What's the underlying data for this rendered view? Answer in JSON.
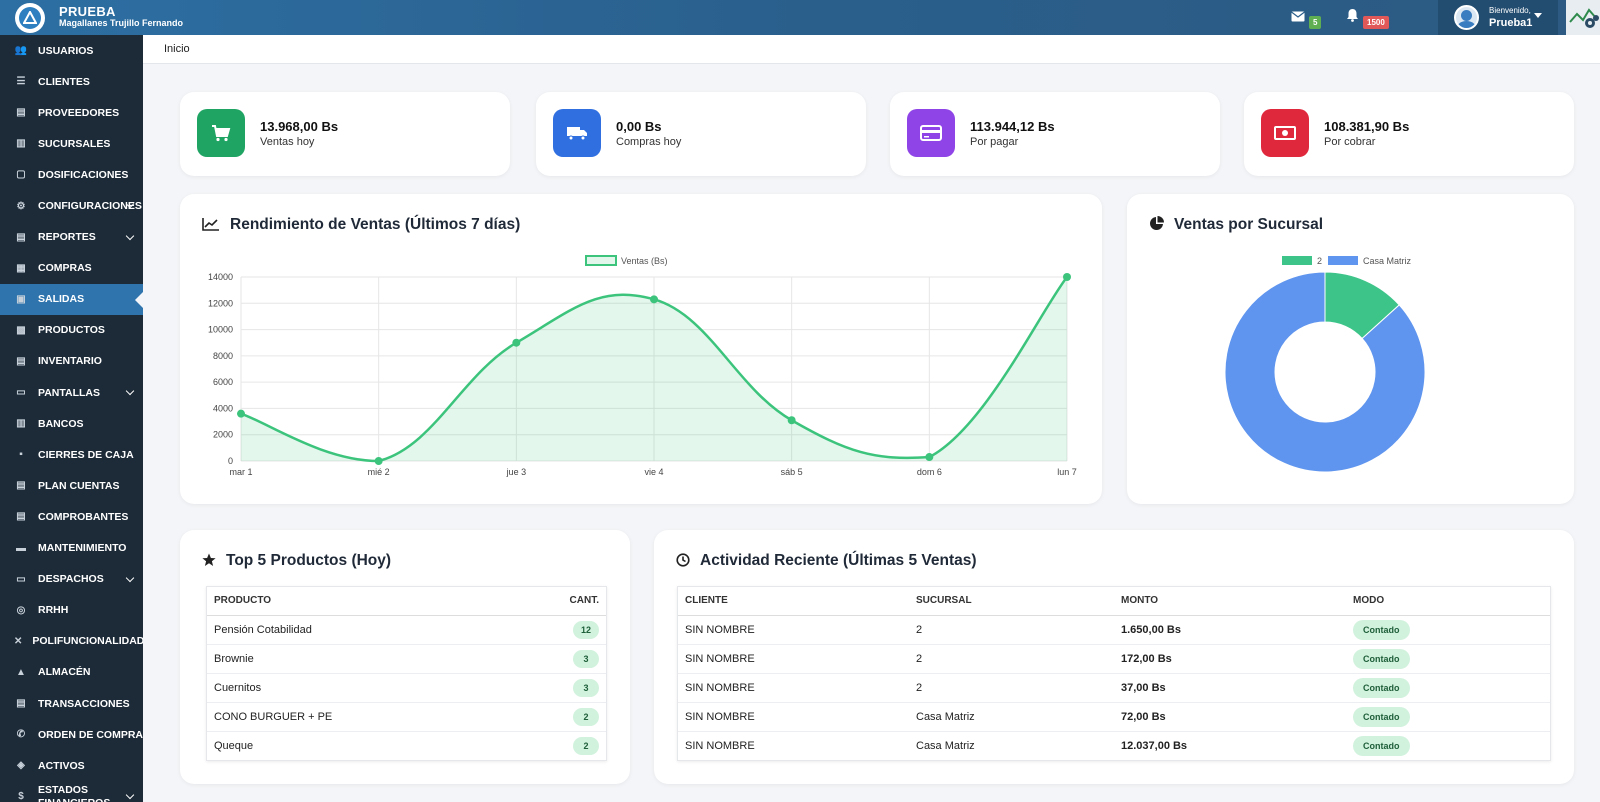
{
  "header": {
    "brand_title": "PRUEBA",
    "brand_subtitle": "Magallanes Trujillo Fernando",
    "mail_count": "5",
    "notif_count": "1500",
    "welcome": "Bienvenido,",
    "username": "Prueba1",
    "colors": {
      "mail_badge": "#4caf50",
      "notif_badge": "#e05858"
    }
  },
  "sidebar": {
    "items": [
      {
        "label": "USUARIOS",
        "icon": "users-icon"
      },
      {
        "label": "CLIENTES",
        "icon": "clients-icon"
      },
      {
        "label": "PROVEEDORES",
        "icon": "truck-icon"
      },
      {
        "label": "SUCURSALES",
        "icon": "building-icon"
      },
      {
        "label": "DOSIFICACIONES",
        "icon": "document-icon"
      },
      {
        "label": "CONFIGURACIONES",
        "icon": "gears-icon",
        "expandable": true
      },
      {
        "label": "REPORTES",
        "icon": "report-icon",
        "expandable": true
      },
      {
        "label": "COMPRAS",
        "icon": "cart-icon"
      },
      {
        "label": "SALIDAS",
        "icon": "exit-icon",
        "active": true
      },
      {
        "label": "PRODUCTOS",
        "icon": "box-icon"
      },
      {
        "label": "INVENTARIO",
        "icon": "inventory-icon"
      },
      {
        "label": "PANTALLAS",
        "icon": "monitor-icon",
        "expandable": true
      },
      {
        "label": "BANCOS",
        "icon": "bank-icon"
      },
      {
        "label": "CIERRES DE CAJA",
        "icon": "lock-icon"
      },
      {
        "label": "PLAN CUENTAS",
        "icon": "list-icon"
      },
      {
        "label": "COMPROBANTES",
        "icon": "receipt-icon"
      },
      {
        "label": "MANTENIMIENTO",
        "icon": "wrench-icon"
      },
      {
        "label": "DESPACHOS",
        "icon": "dispatch-icon",
        "expandable": true
      },
      {
        "label": "RRHH",
        "icon": "people-search-icon"
      },
      {
        "label": "POLIFUNCIONALIDAD",
        "icon": "tools-icon"
      },
      {
        "label": "ALMACÉN",
        "icon": "warehouse-icon"
      },
      {
        "label": "TRANSACCIONES",
        "icon": "transactions-icon"
      },
      {
        "label": "ORDEN DE COMPRA",
        "icon": "phone-icon"
      },
      {
        "label": "ACTIVOS",
        "icon": "assets-icon"
      },
      {
        "label": "ESTADOS FINANCIEROS",
        "icon": "dollar-icon",
        "expandable": true
      }
    ]
  },
  "breadcrumb": "Inicio",
  "stats": [
    {
      "value": "13.968,00 Bs",
      "label": "Ventas hoy",
      "color": "#1fa463",
      "icon": "cart-icon"
    },
    {
      "value": "0,00 Bs",
      "label": "Compras hoy",
      "color": "#2f6fe0",
      "icon": "truck-icon"
    },
    {
      "value": "113.944,12 Bs",
      "label": "Por pagar",
      "color": "#8e44e6",
      "icon": "credit-card-icon"
    },
    {
      "value": "108.381,90 Bs",
      "label": "Por cobrar",
      "color": "#e0283d",
      "icon": "money-icon"
    }
  ],
  "sales_chart": {
    "title": "Rendimiento de Ventas (Últimos 7 días)",
    "chart_data": {
      "type": "line",
      "categories": [
        "mar 1",
        "mié 2",
        "jue 3",
        "vie 4",
        "sáb 5",
        "dom 6",
        "lun 7"
      ],
      "series": [
        {
          "name": "Ventas (Bs)",
          "values": [
            3600,
            0,
            9000,
            12300,
            3100,
            300,
            14000
          ]
        }
      ],
      "ylim": [
        0,
        14000
      ],
      "yticks": [
        0,
        2000,
        4000,
        6000,
        8000,
        10000,
        12000,
        14000
      ],
      "legend": "top",
      "grid": true,
      "line_color": "#3cc47c"
    }
  },
  "branch_chart": {
    "title": "Ventas por Sucursal",
    "chart_data": {
      "type": "pie",
      "categories": [
        "2",
        "Casa Matriz"
      ],
      "values": [
        1859,
        12109
      ],
      "colors": [
        "#3cc489",
        "#5f95ee"
      ],
      "legend": "top"
    }
  },
  "top_products": {
    "title": "Top 5 Productos (Hoy)",
    "columns": [
      "PRODUCTO",
      "CANT."
    ],
    "rows": [
      {
        "product": "Pensión Cotabilidad",
        "qty": "12"
      },
      {
        "product": "Brownie",
        "qty": "3"
      },
      {
        "product": "Cuernitos",
        "qty": "3"
      },
      {
        "product": "CONO BURGUER + PE",
        "qty": "2"
      },
      {
        "product": "Queque",
        "qty": "2"
      }
    ]
  },
  "recent_activity": {
    "title": "Actividad Reciente (Últimas 5 Ventas)",
    "columns": [
      "CLIENTE",
      "SUCURSAL",
      "MONTO",
      "MODO"
    ],
    "rows": [
      {
        "client": "SIN NOMBRE",
        "branch": "2",
        "amount": "1.650,00 Bs",
        "mode": "Contado"
      },
      {
        "client": "SIN NOMBRE",
        "branch": "2",
        "amount": "172,00 Bs",
        "mode": "Contado"
      },
      {
        "client": "SIN NOMBRE",
        "branch": "2",
        "amount": "37,00 Bs",
        "mode": "Contado"
      },
      {
        "client": "SIN NOMBRE",
        "branch": "Casa Matriz",
        "amount": "72,00 Bs",
        "mode": "Contado"
      },
      {
        "client": "SIN NOMBRE",
        "branch": "Casa Matriz",
        "amount": "12.037,00 Bs",
        "mode": "Contado"
      }
    ]
  }
}
